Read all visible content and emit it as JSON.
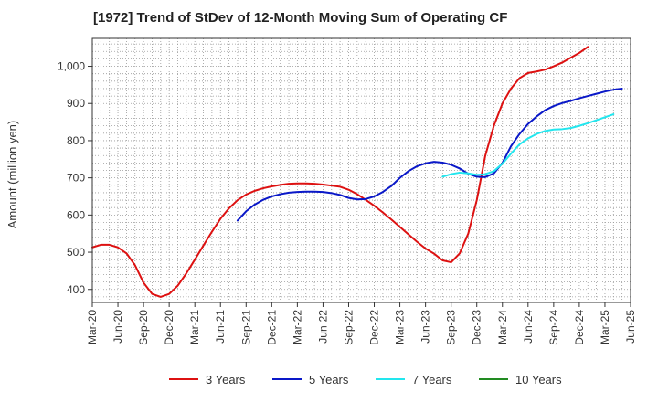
{
  "chart_data": {
    "type": "line",
    "title": "[1972]  Trend of StDev of 12-Month Moving Sum of Operating CF",
    "ylabel": "Amount (million yen)",
    "xlabel": "",
    "ylim": [
      365,
      1075
    ],
    "yticks": [
      400,
      500,
      600,
      700,
      800,
      900,
      1000
    ],
    "ytick_labels": [
      "400",
      "500",
      "600",
      "700",
      "800",
      "900",
      "1,000"
    ],
    "xlim": [
      "2020-03",
      "2025-06"
    ],
    "xtick_labels": [
      "Mar-20",
      "Jun-20",
      "Sep-20",
      "Dec-20",
      "Mar-21",
      "Jun-21",
      "Sep-21",
      "Dec-21",
      "Mar-22",
      "Jun-22",
      "Sep-22",
      "Dec-22",
      "Mar-23",
      "Jun-23",
      "Sep-23",
      "Dec-23",
      "Mar-24",
      "Jun-24",
      "Sep-24",
      "Dec-24",
      "Mar-25",
      "Jun-25"
    ],
    "xtick_dates": [
      "2020-03",
      "2020-06",
      "2020-09",
      "2020-12",
      "2021-03",
      "2021-06",
      "2021-09",
      "2021-12",
      "2022-03",
      "2022-06",
      "2022-09",
      "2022-12",
      "2023-03",
      "2023-06",
      "2023-09",
      "2023-12",
      "2024-03",
      "2024-06",
      "2024-09",
      "2024-12",
      "2025-03",
      "2025-06"
    ],
    "grid": true,
    "legend_position": "bottom",
    "series": [
      {
        "name": "3 Years",
        "color": "#dd1111",
        "start": "2020-03",
        "values": [
          513,
          520,
          520,
          513,
          497,
          465,
          418,
          388,
          380,
          388,
          410,
          443,
          480,
          518,
          555,
          590,
          618,
          640,
          655,
          665,
          672,
          677,
          681,
          684,
          685,
          685,
          684,
          682,
          679,
          676,
          668,
          656,
          641,
          625,
          607,
          588,
          568,
          548,
          528,
          510,
          496,
          478,
          473,
          497,
          550,
          640,
          760,
          840,
          900,
          940,
          968,
          982,
          986,
          991,
          1000,
          1010,
          1023,
          1036,
          1052
        ]
      },
      {
        "name": "5 Years",
        "color": "#0a18c8",
        "start": "2021-08",
        "values": [
          585,
          610,
          628,
          641,
          650,
          656,
          660,
          662,
          663,
          663,
          662,
          659,
          654,
          646,
          642,
          643,
          650,
          662,
          678,
          700,
          718,
          731,
          739,
          743,
          741,
          735,
          725,
          711,
          703,
          702,
          712,
          740,
          785,
          818,
          845,
          865,
          882,
          893,
          901,
          907,
          914,
          920,
          926,
          932,
          937,
          940
        ]
      },
      {
        "name": "7 Years",
        "color": "#22e6ee",
        "start": "2023-08",
        "values": [
          703,
          710,
          714,
          712,
          708,
          710,
          718,
          738,
          765,
          790,
          806,
          818,
          826,
          830,
          831,
          834,
          840,
          847,
          855,
          863,
          871
        ]
      },
      {
        "name": "10 Years",
        "color": "#228b22",
        "start": "2025-03",
        "values": []
      }
    ]
  }
}
